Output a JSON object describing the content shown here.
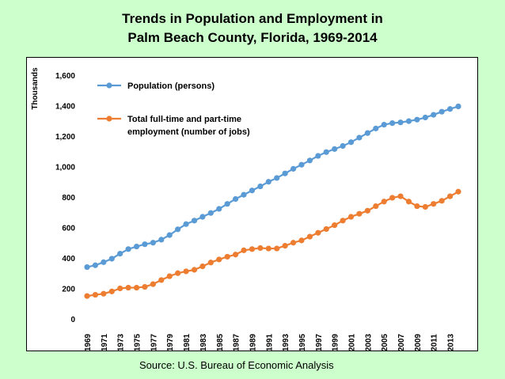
{
  "title_line1": "Trends in Population and Employment in",
  "title_line2": "Palm Beach County, Florida, 1969-2014",
  "source": "Source: U.S. Bureau of Economic Analysis",
  "chart_data": {
    "type": "line",
    "ylabel": "Thousands",
    "xlabel": "",
    "ylim": [
      0,
      1600
    ],
    "yticks": [
      0,
      200,
      400,
      600,
      800,
      1000,
      1200,
      1400,
      1600
    ],
    "ytick_labels": [
      "0",
      "200",
      "400",
      "600",
      "800",
      "1,000",
      "1,200",
      "1,400",
      "1,600"
    ],
    "x": [
      1969,
      1970,
      1971,
      1972,
      1973,
      1974,
      1975,
      1976,
      1977,
      1978,
      1979,
      1980,
      1981,
      1982,
      1983,
      1984,
      1985,
      1986,
      1987,
      1988,
      1989,
      1990,
      1991,
      1992,
      1993,
      1994,
      1995,
      1996,
      1997,
      1998,
      1999,
      2000,
      2001,
      2002,
      2003,
      2004,
      2005,
      2006,
      2007,
      2008,
      2009,
      2010,
      2011,
      2012,
      2013,
      2014
    ],
    "xtick_labels": [
      "1969",
      "1971",
      "1973",
      "1975",
      "1977",
      "1979",
      "1981",
      "1983",
      "1985",
      "1987",
      "1989",
      "1991",
      "1993",
      "1995",
      "1997",
      "1999",
      "2001",
      "2003",
      "2005",
      "2007",
      "2009",
      "2011",
      "2013"
    ],
    "grid": false,
    "legend_position": "top-left",
    "series": [
      {
        "name": "Population (persons)",
        "color": "#5b9bd5",
        "values": [
          340,
          352,
          372,
          395,
          428,
          458,
          475,
          490,
          500,
          520,
          550,
          588,
          622,
          645,
          670,
          695,
          722,
          755,
          787,
          815,
          843,
          870,
          900,
          925,
          955,
          985,
          1012,
          1040,
          1070,
          1095,
          1115,
          1135,
          1160,
          1190,
          1220,
          1250,
          1275,
          1285,
          1290,
          1298,
          1308,
          1322,
          1340,
          1360,
          1378,
          1395
        ]
      },
      {
        "name": "Total full-time and part-time employment (number of jobs)",
        "name_line1": "Total full-time and part-time",
        "name_line2": "employment (number of jobs)",
        "color": "#ed7d31",
        "values": [
          150,
          158,
          165,
          180,
          200,
          205,
          205,
          210,
          228,
          255,
          280,
          300,
          312,
          322,
          345,
          370,
          390,
          408,
          422,
          450,
          458,
          465,
          462,
          462,
          480,
          500,
          515,
          540,
          565,
          590,
          615,
          645,
          670,
          690,
          710,
          740,
          770,
          795,
          805,
          770,
          740,
          735,
          755,
          775,
          805,
          835
        ]
      }
    ]
  }
}
